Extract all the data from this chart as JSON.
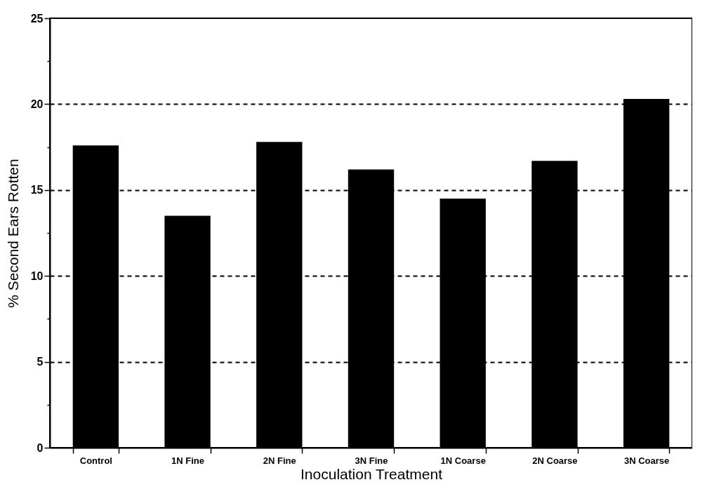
{
  "chart_data": {
    "type": "bar",
    "xlabel": "Inoculation Treatment",
    "ylabel": "% Second Ears Rotten",
    "categories": [
      "Control",
      "1N Fine",
      "2N Fine",
      "3N Fine",
      "1N Coarse",
      "2N Coarse",
      "3N Coarse"
    ],
    "values": [
      17.6,
      13.5,
      17.8,
      16.2,
      14.5,
      16.7,
      20.3
    ],
    "color": "#000000",
    "ylim": [
      0,
      25
    ],
    "yticks": [
      0,
      {
        "value": 2.5,
        "label": null
      },
      5,
      {
        "value": 7.5,
        "label": null
      },
      10,
      {
        "value": 12.5,
        "label": null
      },
      15,
      {
        "value": 17.5,
        "label": null
      },
      20,
      {
        "value": 22.5,
        "label": null
      },
      25
    ],
    "grid": "y"
  }
}
